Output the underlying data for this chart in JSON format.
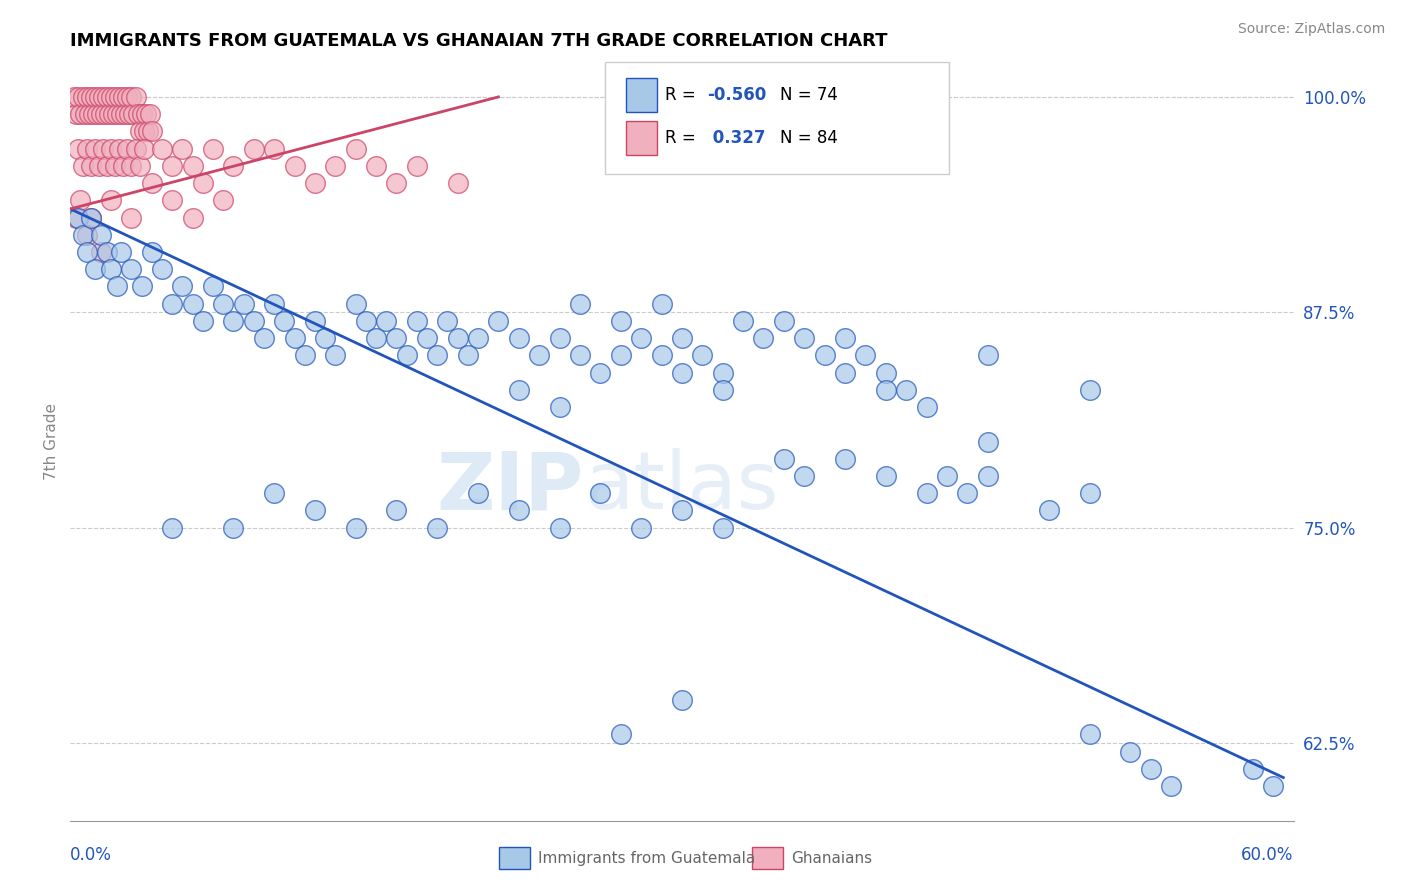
{
  "title": "IMMIGRANTS FROM GUATEMALA VS GHANAIAN 7TH GRADE CORRELATION CHART",
  "source": "Source: ZipAtlas.com",
  "ylabel": "7th Grade",
  "yticks": [
    62.5,
    75.0,
    87.5,
    100.0
  ],
  "ytick_labels": [
    "62.5%",
    "75.0%",
    "87.5%",
    "100.0%"
  ],
  "xmin": 0.0,
  "xmax": 60.0,
  "ymin": 58.0,
  "ymax": 102.0,
  "blue_color": "#a8c8e8",
  "pink_color": "#f0b0be",
  "blue_line_color": "#2255bb",
  "pink_line_color": "#cc4466",
  "watermark_zip": "ZIP",
  "watermark_atlas": "atlas",
  "blue_trend_x": [
    0.0,
    59.5
  ],
  "blue_trend_y": [
    93.5,
    60.5
  ],
  "pink_trend_x": [
    0.0,
    21.0
  ],
  "pink_trend_y": [
    93.5,
    100.0
  ],
  "blue_scatter": [
    [
      0.4,
      93
    ],
    [
      0.6,
      92
    ],
    [
      0.8,
      91
    ],
    [
      1.0,
      93
    ],
    [
      1.2,
      90
    ],
    [
      1.5,
      92
    ],
    [
      1.8,
      91
    ],
    [
      2.0,
      90
    ],
    [
      2.3,
      89
    ],
    [
      2.5,
      91
    ],
    [
      3.0,
      90
    ],
    [
      3.5,
      89
    ],
    [
      4.0,
      91
    ],
    [
      4.5,
      90
    ],
    [
      5.0,
      88
    ],
    [
      5.5,
      89
    ],
    [
      6.0,
      88
    ],
    [
      6.5,
      87
    ],
    [
      7.0,
      89
    ],
    [
      7.5,
      88
    ],
    [
      8.0,
      87
    ],
    [
      8.5,
      88
    ],
    [
      9.0,
      87
    ],
    [
      9.5,
      86
    ],
    [
      10.0,
      88
    ],
    [
      10.5,
      87
    ],
    [
      11.0,
      86
    ],
    [
      11.5,
      85
    ],
    [
      12.0,
      87
    ],
    [
      12.5,
      86
    ],
    [
      13.0,
      85
    ],
    [
      14.0,
      88
    ],
    [
      14.5,
      87
    ],
    [
      15.0,
      86
    ],
    [
      15.5,
      87
    ],
    [
      16.0,
      86
    ],
    [
      16.5,
      85
    ],
    [
      17.0,
      87
    ],
    [
      17.5,
      86
    ],
    [
      18.0,
      85
    ],
    [
      18.5,
      87
    ],
    [
      19.0,
      86
    ],
    [
      19.5,
      85
    ],
    [
      20.0,
      86
    ],
    [
      21.0,
      87
    ],
    [
      22.0,
      86
    ],
    [
      23.0,
      85
    ],
    [
      24.0,
      86
    ],
    [
      25.0,
      85
    ],
    [
      26.0,
      84
    ],
    [
      27.0,
      85
    ],
    [
      28.0,
      86
    ],
    [
      29.0,
      85
    ],
    [
      30.0,
      86
    ],
    [
      31.0,
      85
    ],
    [
      32.0,
      84
    ],
    [
      33.0,
      87
    ],
    [
      34.0,
      86
    ],
    [
      25.0,
      88
    ],
    [
      27.0,
      87
    ],
    [
      29.0,
      88
    ],
    [
      35.0,
      87
    ],
    [
      36.0,
      86
    ],
    [
      37.0,
      85
    ],
    [
      38.0,
      86
    ],
    [
      39.0,
      85
    ],
    [
      40.0,
      84
    ],
    [
      41.0,
      83
    ],
    [
      45.0,
      85
    ],
    [
      50.0,
      83
    ],
    [
      8.0,
      75
    ],
    [
      10.0,
      77
    ],
    [
      12.0,
      76
    ],
    [
      14.0,
      75
    ],
    [
      16.0,
      76
    ],
    [
      18.0,
      75
    ],
    [
      20.0,
      77
    ],
    [
      22.0,
      76
    ],
    [
      24.0,
      75
    ],
    [
      26.0,
      77
    ],
    [
      28.0,
      75
    ],
    [
      30.0,
      76
    ],
    [
      32.0,
      75
    ],
    [
      35.0,
      79
    ],
    [
      36.0,
      78
    ],
    [
      38.0,
      79
    ],
    [
      40.0,
      78
    ],
    [
      42.0,
      77
    ],
    [
      43.0,
      78
    ],
    [
      44.0,
      77
    ],
    [
      45.0,
      78
    ],
    [
      48.0,
      76
    ],
    [
      50.0,
      77
    ],
    [
      30.0,
      84
    ],
    [
      32.0,
      83
    ],
    [
      5.0,
      75
    ],
    [
      22.0,
      83
    ],
    [
      24.0,
      82
    ],
    [
      38.0,
      84
    ],
    [
      40.0,
      83
    ],
    [
      42.0,
      82
    ],
    [
      45.0,
      80
    ],
    [
      27.0,
      63
    ],
    [
      30.0,
      65
    ],
    [
      50.0,
      63
    ],
    [
      52.0,
      62
    ],
    [
      53.0,
      61
    ],
    [
      54.0,
      60
    ],
    [
      58.0,
      61
    ],
    [
      59.0,
      60
    ]
  ],
  "pink_scatter": [
    [
      0.2,
      100
    ],
    [
      0.3,
      99
    ],
    [
      0.4,
      100
    ],
    [
      0.5,
      99
    ],
    [
      0.6,
      100
    ],
    [
      0.7,
      99
    ],
    [
      0.8,
      100
    ],
    [
      0.9,
      99
    ],
    [
      1.0,
      100
    ],
    [
      1.1,
      99
    ],
    [
      1.2,
      100
    ],
    [
      1.3,
      99
    ],
    [
      1.4,
      100
    ],
    [
      1.5,
      99
    ],
    [
      1.6,
      100
    ],
    [
      1.7,
      99
    ],
    [
      1.8,
      100
    ],
    [
      1.9,
      99
    ],
    [
      2.0,
      100
    ],
    [
      2.1,
      99
    ],
    [
      2.2,
      100
    ],
    [
      2.3,
      99
    ],
    [
      2.4,
      100
    ],
    [
      2.5,
      99
    ],
    [
      2.6,
      100
    ],
    [
      2.7,
      99
    ],
    [
      2.8,
      100
    ],
    [
      2.9,
      99
    ],
    [
      3.0,
      100
    ],
    [
      3.1,
      99
    ],
    [
      3.2,
      100
    ],
    [
      3.3,
      99
    ],
    [
      3.4,
      98
    ],
    [
      3.5,
      99
    ],
    [
      3.6,
      98
    ],
    [
      3.7,
      99
    ],
    [
      3.8,
      98
    ],
    [
      3.9,
      99
    ],
    [
      4.0,
      98
    ],
    [
      0.4,
      97
    ],
    [
      0.6,
      96
    ],
    [
      0.8,
      97
    ],
    [
      1.0,
      96
    ],
    [
      1.2,
      97
    ],
    [
      1.4,
      96
    ],
    [
      1.6,
      97
    ],
    [
      1.8,
      96
    ],
    [
      2.0,
      97
    ],
    [
      2.2,
      96
    ],
    [
      2.4,
      97
    ],
    [
      2.6,
      96
    ],
    [
      2.8,
      97
    ],
    [
      3.0,
      96
    ],
    [
      3.2,
      97
    ],
    [
      3.4,
      96
    ],
    [
      3.6,
      97
    ],
    [
      4.5,
      97
    ],
    [
      5.0,
      96
    ],
    [
      5.5,
      97
    ],
    [
      6.0,
      96
    ],
    [
      7.0,
      97
    ],
    [
      8.0,
      96
    ],
    [
      9.0,
      97
    ],
    [
      10.0,
      97
    ],
    [
      11.0,
      96
    ],
    [
      12.0,
      95
    ],
    [
      13.0,
      96
    ],
    [
      14.0,
      97
    ],
    [
      15.0,
      96
    ],
    [
      16.0,
      95
    ],
    [
      4.0,
      95
    ],
    [
      5.0,
      94
    ],
    [
      6.0,
      93
    ],
    [
      0.5,
      94
    ],
    [
      1.0,
      93
    ],
    [
      2.0,
      94
    ],
    [
      3.0,
      93
    ],
    [
      17.0,
      96
    ],
    [
      19.0,
      95
    ],
    [
      0.3,
      93
    ],
    [
      0.8,
      92
    ],
    [
      1.5,
      91
    ],
    [
      6.5,
      95
    ],
    [
      7.5,
      94
    ]
  ]
}
